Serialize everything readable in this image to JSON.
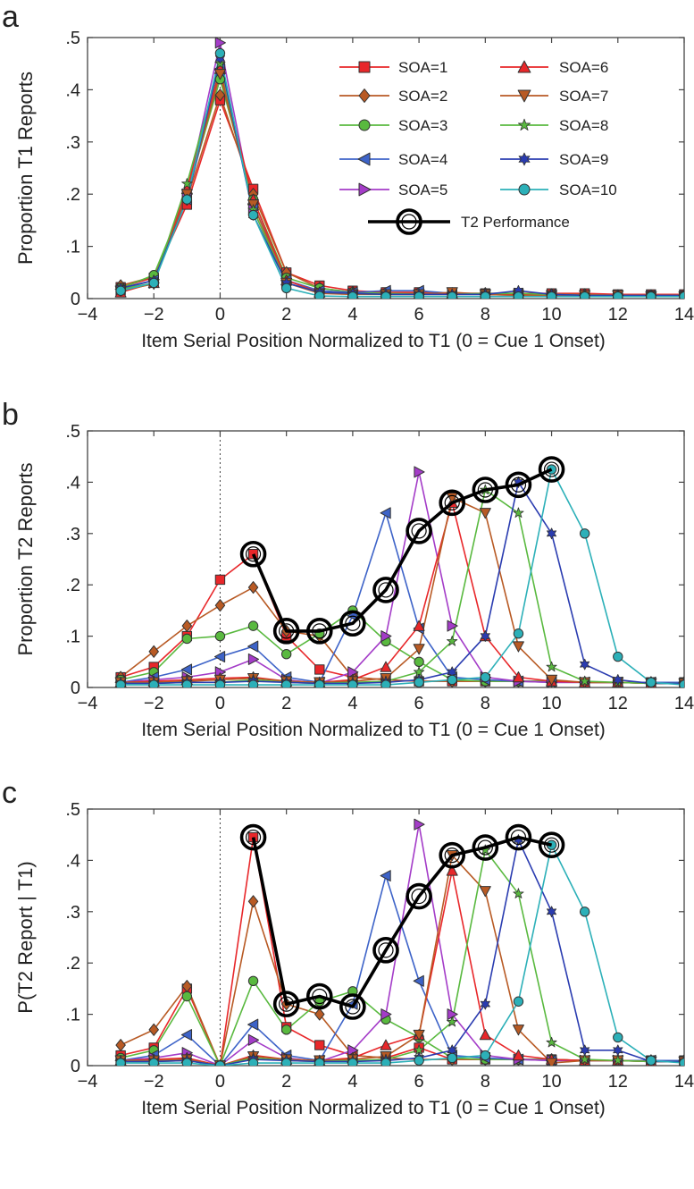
{
  "figure": {
    "legend": [
      {
        "label": "SOA=1",
        "color": "#e8272a",
        "marker": "square"
      },
      {
        "label": "SOA=2",
        "color": "#b85a24",
        "marker": "diamond"
      },
      {
        "label": "SOA=3",
        "color": "#59b93f",
        "marker": "circle"
      },
      {
        "label": "SOA=4",
        "color": "#3d63c8",
        "marker": "triangle-left"
      },
      {
        "label": "SOA=5",
        "color": "#a43cc8",
        "marker": "triangle-right"
      },
      {
        "label": "SOA=6",
        "color": "#e8272a",
        "marker": "triangle-up"
      },
      {
        "label": "SOA=7",
        "color": "#b85a24",
        "marker": "triangle-down"
      },
      {
        "label": "SOA=8",
        "color": "#59b93f",
        "marker": "star"
      },
      {
        "label": "SOA=9",
        "color": "#2a3cb0",
        "marker": "hexagram"
      },
      {
        "label": "SOA=10",
        "color": "#2cb0b8",
        "marker": "circle"
      },
      {
        "label": "T2 Performance",
        "color": "#000000",
        "marker": "ring"
      }
    ]
  },
  "chart_data": [
    {
      "type": "line",
      "panel_letter": "a",
      "xlabel": "Item Serial Position Normalized to T1 (0 = Cue 1 Onset)",
      "ylabel": "Proportion T1 Reports",
      "xlim": [
        -4,
        14
      ],
      "ylim": [
        0,
        0.5
      ],
      "xticks": [
        -4,
        -2,
        0,
        2,
        4,
        6,
        8,
        10,
        12,
        14
      ],
      "ytick_labels": [
        "0",
        ".1",
        ".2",
        ".3",
        ".4",
        ".5"
      ],
      "ytick_values": [
        0,
        0.1,
        0.2,
        0.3,
        0.4,
        0.5
      ],
      "reference_line_x": 0,
      "x": [
        -3,
        -2,
        -1,
        0,
        1,
        2,
        3,
        4,
        5,
        6,
        7,
        8,
        9,
        10,
        11,
        12,
        13,
        14
      ],
      "series": [
        {
          "name": "SOA=1",
          "values": [
            0.022,
            0.04,
            0.18,
            0.38,
            0.21,
            0.05,
            0.025,
            0.015,
            0.012,
            0.012,
            0.01,
            0.01,
            0.01,
            0.01,
            0.01,
            0.008,
            0.008,
            0.008
          ]
        },
        {
          "name": "SOA=2",
          "values": [
            0.025,
            0.042,
            0.19,
            0.39,
            0.2,
            0.05,
            0.02,
            0.012,
            0.01,
            0.01,
            0.01,
            0.01,
            0.008,
            0.008,
            0.008,
            0.006,
            0.006,
            0.006
          ]
        },
        {
          "name": "SOA=3",
          "values": [
            0.02,
            0.045,
            0.2,
            0.42,
            0.19,
            0.04,
            0.02,
            0.012,
            0.01,
            0.008,
            0.008,
            0.008,
            0.008,
            0.006,
            0.006,
            0.006,
            0.006,
            0.006
          ]
        },
        {
          "name": "SOA=4",
          "values": [
            0.018,
            0.035,
            0.19,
            0.44,
            0.18,
            0.035,
            0.015,
            0.012,
            0.015,
            0.015,
            0.01,
            0.008,
            0.008,
            0.008,
            0.006,
            0.006,
            0.006,
            0.006
          ]
        },
        {
          "name": "SOA=5",
          "values": [
            0.015,
            0.03,
            0.2,
            0.49,
            0.17,
            0.03,
            0.012,
            0.01,
            0.008,
            0.008,
            0.008,
            0.008,
            0.006,
            0.006,
            0.006,
            0.006,
            0.006,
            0.006
          ]
        },
        {
          "name": "SOA=6",
          "values": [
            0.012,
            0.03,
            0.21,
            0.44,
            0.19,
            0.035,
            0.012,
            0.01,
            0.008,
            0.008,
            0.01,
            0.008,
            0.008,
            0.006,
            0.006,
            0.006,
            0.006,
            0.006
          ]
        },
        {
          "name": "SOA=7",
          "values": [
            0.015,
            0.028,
            0.2,
            0.43,
            0.18,
            0.03,
            0.01,
            0.008,
            0.008,
            0.008,
            0.012,
            0.008,
            0.006,
            0.006,
            0.006,
            0.006,
            0.004,
            0.004
          ]
        },
        {
          "name": "SOA=8",
          "values": [
            0.018,
            0.03,
            0.22,
            0.45,
            0.17,
            0.03,
            0.012,
            0.01,
            0.008,
            0.008,
            0.008,
            0.01,
            0.01,
            0.008,
            0.006,
            0.006,
            0.006,
            0.006
          ]
        },
        {
          "name": "SOA=9",
          "values": [
            0.02,
            0.035,
            0.19,
            0.46,
            0.16,
            0.03,
            0.012,
            0.01,
            0.008,
            0.008,
            0.008,
            0.008,
            0.015,
            0.008,
            0.006,
            0.006,
            0.006,
            0.006
          ]
        },
        {
          "name": "SOA=10",
          "values": [
            0.015,
            0.03,
            0.19,
            0.47,
            0.16,
            0.02,
            0.005,
            0.004,
            0.004,
            0.004,
            0.004,
            0.004,
            0.004,
            0.004,
            0.004,
            0.004,
            0.004,
            0.004
          ]
        }
      ],
      "t2_performance": null
    },
    {
      "type": "line",
      "panel_letter": "b",
      "xlabel": "Item Serial Position Normalized to T1 (0 = Cue 1 Onset)",
      "ylabel": "Proportion T2 Reports",
      "xlim": [
        -4,
        14
      ],
      "ylim": [
        0,
        0.5
      ],
      "xticks": [
        -4,
        -2,
        0,
        2,
        4,
        6,
        8,
        10,
        12,
        14
      ],
      "ytick_labels": [
        "0",
        ".1",
        ".2",
        ".3",
        ".4",
        ".5"
      ],
      "ytick_values": [
        0,
        0.1,
        0.2,
        0.3,
        0.4,
        0.5
      ],
      "reference_line_x": 0,
      "x": [
        -3,
        -2,
        -1,
        0,
        1,
        2,
        3,
        4,
        5,
        6,
        7,
        8,
        9,
        10,
        11,
        12,
        13,
        14
      ],
      "series": [
        {
          "name": "SOA=1",
          "values": [
            0.02,
            0.04,
            0.1,
            0.21,
            0.26,
            0.1,
            0.035,
            0.02,
            0.015,
            0.012,
            0.012,
            0.012,
            0.012,
            0.012,
            0.01,
            0.01,
            0.01,
            0.01
          ]
        },
        {
          "name": "SOA=2",
          "values": [
            0.02,
            0.07,
            0.12,
            0.16,
            0.195,
            0.11,
            0.1,
            0.02,
            0.015,
            0.012,
            0.012,
            0.012,
            0.012,
            0.012,
            0.01,
            0.01,
            0.01,
            0.01
          ]
        },
        {
          "name": "SOA=3",
          "values": [
            0.015,
            0.03,
            0.095,
            0.1,
            0.12,
            0.065,
            0.105,
            0.15,
            0.09,
            0.05,
            0.015,
            0.012,
            0.012,
            0.012,
            0.01,
            0.01,
            0.01,
            0.01
          ]
        },
        {
          "name": "SOA=4",
          "values": [
            0.01,
            0.02,
            0.035,
            0.06,
            0.08,
            0.02,
            0.01,
            0.14,
            0.34,
            0.115,
            0.02,
            0.015,
            0.012,
            0.01,
            0.01,
            0.01,
            0.01,
            0.01
          ]
        },
        {
          "name": "SOA=5",
          "values": [
            0.01,
            0.015,
            0.02,
            0.03,
            0.055,
            0.015,
            0.008,
            0.03,
            0.1,
            0.42,
            0.12,
            0.02,
            0.012,
            0.01,
            0.01,
            0.01,
            0.008,
            0.008
          ]
        },
        {
          "name": "SOA=6",
          "values": [
            0.01,
            0.012,
            0.015,
            0.018,
            0.02,
            0.012,
            0.01,
            0.015,
            0.04,
            0.12,
            0.36,
            0.1,
            0.02,
            0.012,
            0.01,
            0.01,
            0.008,
            0.008
          ]
        },
        {
          "name": "SOA=7",
          "values": [
            0.01,
            0.01,
            0.012,
            0.015,
            0.018,
            0.012,
            0.01,
            0.012,
            0.018,
            0.075,
            0.37,
            0.34,
            0.08,
            0.015,
            0.01,
            0.01,
            0.008,
            0.008
          ]
        },
        {
          "name": "SOA=8",
          "values": [
            0.008,
            0.008,
            0.01,
            0.01,
            0.015,
            0.01,
            0.008,
            0.01,
            0.012,
            0.03,
            0.09,
            0.385,
            0.34,
            0.04,
            0.012,
            0.01,
            0.008,
            0.008
          ]
        },
        {
          "name": "SOA=9",
          "values": [
            0.008,
            0.008,
            0.01,
            0.01,
            0.012,
            0.01,
            0.008,
            0.008,
            0.01,
            0.015,
            0.03,
            0.1,
            0.4,
            0.3,
            0.045,
            0.015,
            0.008,
            0.008
          ]
        },
        {
          "name": "SOA=10",
          "values": [
            0.005,
            0.005,
            0.005,
            0.005,
            0.005,
            0.005,
            0.005,
            0.005,
            0.005,
            0.01,
            0.015,
            0.02,
            0.105,
            0.425,
            0.3,
            0.06,
            0.01,
            0.005
          ]
        }
      ],
      "t2_performance": {
        "x": [
          1,
          2,
          3,
          4,
          5,
          6,
          7,
          8,
          9,
          10
        ],
        "values": [
          0.26,
          0.11,
          0.11,
          0.125,
          0.19,
          0.305,
          0.36,
          0.385,
          0.395,
          0.425
        ]
      }
    },
    {
      "type": "line",
      "panel_letter": "c",
      "xlabel": "Item Serial Position Normalized to T1 (0 = Cue 1 Onset)",
      "ylabel": "P(T2 Report  | T1)",
      "xlim": [
        -4,
        14
      ],
      "ylim": [
        0,
        0.5
      ],
      "xticks": [
        -4,
        -2,
        0,
        2,
        4,
        6,
        8,
        10,
        12,
        14
      ],
      "ytick_labels": [
        "0",
        ".1",
        ".2",
        ".3",
        ".4",
        ".5"
      ],
      "ytick_values": [
        0,
        0.1,
        0.2,
        0.3,
        0.4,
        0.5
      ],
      "reference_line_x": 0,
      "x": [
        -3,
        -2,
        -1,
        0,
        1,
        2,
        3,
        4,
        5,
        6,
        7,
        8,
        9,
        10,
        11,
        12,
        13,
        14
      ],
      "series": [
        {
          "name": "SOA=1",
          "values": [
            0.02,
            0.035,
            0.15,
            0.0,
            0.445,
            0.075,
            0.04,
            0.02,
            0.015,
            0.035,
            0.012,
            0.012,
            0.012,
            0.012,
            0.01,
            0.01,
            0.01,
            0.01
          ]
        },
        {
          "name": "SOA=2",
          "values": [
            0.04,
            0.07,
            0.155,
            0.0,
            0.32,
            0.12,
            0.1,
            0.02,
            0.015,
            0.012,
            0.012,
            0.012,
            0.012,
            0.012,
            0.01,
            0.01,
            0.01,
            0.01
          ]
        },
        {
          "name": "SOA=3",
          "values": [
            0.015,
            0.03,
            0.135,
            0.0,
            0.165,
            0.07,
            0.125,
            0.145,
            0.09,
            0.055,
            0.015,
            0.012,
            0.012,
            0.012,
            0.01,
            0.01,
            0.01,
            0.01
          ]
        },
        {
          "name": "SOA=4",
          "values": [
            0.01,
            0.02,
            0.06,
            0.0,
            0.08,
            0.02,
            0.01,
            0.12,
            0.37,
            0.165,
            0.02,
            0.015,
            0.012,
            0.01,
            0.01,
            0.01,
            0.01,
            0.01
          ]
        },
        {
          "name": "SOA=5",
          "values": [
            0.01,
            0.015,
            0.025,
            0.0,
            0.05,
            0.015,
            0.008,
            0.03,
            0.1,
            0.47,
            0.1,
            0.02,
            0.012,
            0.01,
            0.01,
            0.01,
            0.008,
            0.008
          ]
        },
        {
          "name": "SOA=6",
          "values": [
            0.01,
            0.012,
            0.015,
            0.0,
            0.02,
            0.012,
            0.01,
            0.015,
            0.04,
            0.06,
            0.38,
            0.06,
            0.02,
            0.012,
            0.01,
            0.01,
            0.008,
            0.008
          ]
        },
        {
          "name": "SOA=7",
          "values": [
            0.01,
            0.01,
            0.012,
            0.0,
            0.018,
            0.012,
            0.01,
            0.012,
            0.018,
            0.06,
            0.41,
            0.34,
            0.07,
            0.005,
            0.01,
            0.01,
            0.008,
            0.008
          ]
        },
        {
          "name": "SOA=8",
          "values": [
            0.008,
            0.008,
            0.01,
            0.0,
            0.015,
            0.01,
            0.008,
            0.01,
            0.012,
            0.03,
            0.085,
            0.42,
            0.335,
            0.045,
            0.012,
            0.01,
            0.008,
            0.008
          ]
        },
        {
          "name": "SOA=9",
          "values": [
            0.008,
            0.008,
            0.01,
            0.0,
            0.012,
            0.01,
            0.008,
            0.008,
            0.01,
            0.015,
            0.03,
            0.12,
            0.44,
            0.3,
            0.03,
            0.03,
            0.008,
            0.008
          ]
        },
        {
          "name": "SOA=10",
          "values": [
            0.005,
            0.005,
            0.005,
            0.0,
            0.005,
            0.005,
            0.005,
            0.005,
            0.005,
            0.01,
            0.015,
            0.02,
            0.125,
            0.43,
            0.3,
            0.055,
            0.01,
            0.005
          ]
        }
      ],
      "t2_performance": {
        "x": [
          1,
          2,
          3,
          4,
          5,
          6,
          7,
          8,
          9,
          10
        ],
        "values": [
          0.445,
          0.12,
          0.135,
          0.115,
          0.225,
          0.33,
          0.41,
          0.425,
          0.445,
          0.43
        ]
      }
    }
  ]
}
